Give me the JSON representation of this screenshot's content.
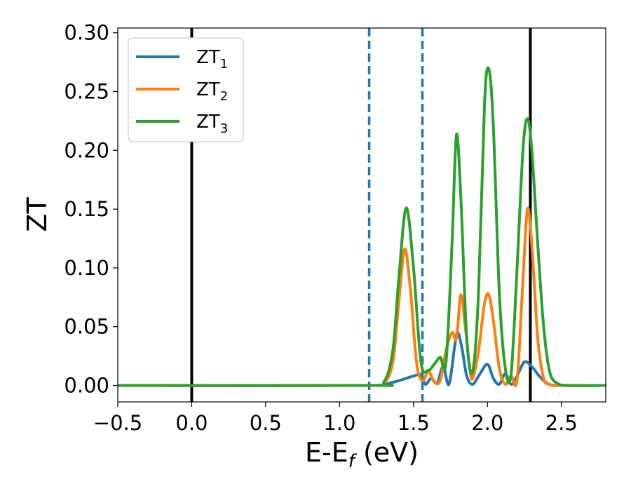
{
  "chart_data": {
    "type": "line",
    "title": "",
    "xlabel": {
      "main": "E-E",
      "sub": "f",
      "suffix": " (eV)"
    },
    "ylabel": "ZT",
    "xlim": [
      -0.5,
      2.8
    ],
    "ylim": [
      -0.014,
      0.304
    ],
    "xticks": [
      -0.5,
      0.0,
      0.5,
      1.0,
      1.5,
      2.0,
      2.5
    ],
    "xtick_labels": [
      "−0.5",
      "0.0",
      "0.5",
      "1.0",
      "1.5",
      "2.0",
      "2.5"
    ],
    "yticks": [
      0.0,
      0.05,
      0.1,
      0.15,
      0.2,
      0.25,
      0.3
    ],
    "ytick_labels": [
      "0.00",
      "0.05",
      "0.10",
      "0.15",
      "0.20",
      "0.25",
      "0.30"
    ],
    "grid": false,
    "legend_position": "top-left",
    "vlines": [
      {
        "x": 0.0,
        "color": "#000000",
        "style": "solid"
      },
      {
        "x": 2.29,
        "color": "#000000",
        "style": "solid"
      },
      {
        "x": 1.2,
        "color": "#1f77b4",
        "style": "dashed"
      },
      {
        "x": 1.56,
        "color": "#1f77b4",
        "style": "dashed"
      }
    ],
    "series": [
      {
        "name": "ZT",
        "sub": "1",
        "color": "#1f77b4",
        "x": [
          -0.5,
          1.2,
          1.3,
          1.4,
          1.5,
          1.55,
          1.58,
          1.62,
          1.66,
          1.7,
          1.74,
          1.78,
          1.8,
          1.83,
          1.86,
          1.9,
          1.95,
          2.0,
          2.04,
          2.08,
          2.12,
          2.16,
          2.2,
          2.25,
          2.3,
          2.35,
          2.4,
          2.45,
          2.5,
          2.8
        ],
        "y": [
          0.0,
          0.0,
          0.001,
          0.004,
          0.008,
          0.009,
          0.001,
          0.006,
          0.002,
          0.016,
          0.001,
          0.035,
          0.045,
          0.03,
          0.008,
          0.001,
          0.01,
          0.018,
          0.006,
          0.001,
          0.01,
          0.001,
          0.008,
          0.02,
          0.016,
          0.008,
          0.002,
          0.0,
          0.0,
          0.0
        ]
      },
      {
        "name": "ZT",
        "sub": "2",
        "color": "#ff7f0e",
        "x": [
          -0.5,
          1.2,
          1.3,
          1.36,
          1.4,
          1.44,
          1.48,
          1.52,
          1.56,
          1.6,
          1.64,
          1.68,
          1.72,
          1.76,
          1.79,
          1.82,
          1.85,
          1.88,
          1.9,
          1.94,
          1.98,
          2.01,
          2.04,
          2.08,
          2.12,
          2.16,
          2.2,
          2.24,
          2.27,
          2.3,
          2.34,
          2.38,
          2.42,
          2.5,
          2.8
        ],
        "y": [
          0.0,
          0.0,
          0.002,
          0.02,
          0.07,
          0.116,
          0.08,
          0.02,
          0.004,
          0.012,
          0.003,
          0.004,
          0.03,
          0.045,
          0.04,
          0.077,
          0.05,
          0.015,
          0.006,
          0.03,
          0.07,
          0.077,
          0.055,
          0.015,
          0.001,
          0.008,
          0.005,
          0.09,
          0.15,
          0.12,
          0.04,
          0.006,
          0.001,
          0.0,
          0.0
        ]
      },
      {
        "name": "ZT",
        "sub": "3",
        "color": "#2ca02c",
        "x": [
          -0.5,
          1.2,
          1.3,
          1.36,
          1.4,
          1.45,
          1.5,
          1.55,
          1.6,
          1.64,
          1.68,
          1.72,
          1.76,
          1.79,
          1.82,
          1.86,
          1.9,
          1.94,
          1.98,
          2.01,
          2.04,
          2.08,
          2.12,
          2.16,
          2.2,
          2.24,
          2.27,
          2.3,
          2.34,
          2.38,
          2.42,
          2.47,
          2.55,
          2.8
        ],
        "y": [
          0.0,
          0.0,
          0.003,
          0.03,
          0.09,
          0.151,
          0.1,
          0.02,
          0.013,
          0.018,
          0.024,
          0.02,
          0.12,
          0.213,
          0.16,
          0.04,
          0.012,
          0.08,
          0.24,
          0.269,
          0.22,
          0.08,
          0.015,
          0.01,
          0.1,
          0.2,
          0.227,
          0.2,
          0.12,
          0.05,
          0.012,
          0.002,
          0.0,
          0.0
        ]
      }
    ]
  }
}
